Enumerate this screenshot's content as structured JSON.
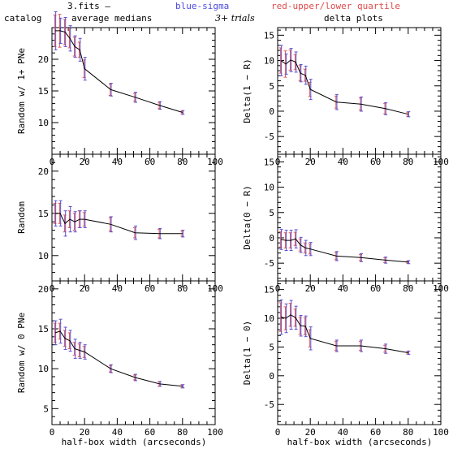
{
  "header": {
    "fits_label": "3.fits  —",
    "blue_label": "blue-sigma",
    "red_label": "red-upper/lower quartile",
    "catalog_label": "catalog",
    "avg_label": "average medians",
    "trials_label": "3+ trials",
    "delta_label": "delta plots"
  },
  "colors": {
    "line": "#000000",
    "sigma": "#5a4fcf",
    "quartile": "#e05a5a",
    "text_blue": "#4a4ae0",
    "text_red": "#e04a4a"
  },
  "xlabel": "half-box width (arcseconds)",
  "chart_data": [
    {
      "type": "line",
      "panel": "catalog-1plus",
      "ylabel": "Random w/ 1+ PNe",
      "xlim": [
        0,
        100
      ],
      "ylim": [
        5,
        25
      ],
      "xticks": [
        0,
        20,
        40,
        60,
        80,
        100
      ],
      "yticks": [
        10,
        15,
        20
      ],
      "x": [
        2,
        5,
        8,
        11,
        14,
        17,
        20,
        36,
        51,
        66,
        80
      ],
      "y": [
        24.5,
        24.5,
        24.3,
        23.3,
        22.0,
        21.5,
        18.5,
        15.2,
        14.0,
        12.7,
        11.6
      ],
      "sigma": [
        3.0,
        2.0,
        2.3,
        2.0,
        1.7,
        1.8,
        1.8,
        1.0,
        0.8,
        0.6,
        0.3
      ],
      "quartile": [
        2.5,
        2.6,
        2.0,
        1.5,
        1.5,
        1.2,
        1.4,
        0.9,
        0.6,
        0.5,
        0.2
      ]
    },
    {
      "type": "line",
      "panel": "delta-1-R",
      "ylabel": "Delta(1 − R)",
      "xlim": [
        0,
        100
      ],
      "ylim": [
        -8.5,
        16.5
      ],
      "xticks": [
        0,
        20,
        40,
        60,
        80,
        100
      ],
      "yticks": [
        -5,
        0,
        5,
        10,
        15
      ],
      "x": [
        2,
        5,
        8,
        11,
        14,
        17,
        20,
        36,
        51,
        66,
        80
      ],
      "y": [
        10.0,
        9.3,
        10.1,
        9.7,
        7.5,
        7.1,
        4.3,
        1.8,
        1.4,
        0.5,
        -0.6
      ],
      "sigma": [
        3.0,
        2.0,
        2.3,
        2.0,
        1.7,
        1.8,
        2.0,
        1.5,
        1.4,
        1.2,
        0.5
      ],
      "quartile": [
        2.5,
        2.6,
        2.0,
        1.5,
        1.5,
        1.2,
        1.4,
        1.2,
        1.2,
        1.0,
        0.4
      ]
    },
    {
      "type": "line",
      "panel": "catalog-random",
      "ylabel": "Random",
      "xlim": [
        0,
        100
      ],
      "ylim": [
        7,
        22
      ],
      "xticks": [
        0,
        20,
        40,
        60,
        80,
        100
      ],
      "yticks": [
        10,
        15,
        20
      ],
      "x": [
        2,
        5,
        8,
        11,
        14,
        17,
        20,
        36,
        51,
        66,
        80
      ],
      "y": [
        15.0,
        15.0,
        13.8,
        14.3,
        14.0,
        14.3,
        14.3,
        13.7,
        12.7,
        12.6,
        12.6
      ],
      "sigma": [
        1.5,
        1.5,
        1.5,
        1.5,
        1.2,
        1.0,
        1.0,
        0.9,
        0.8,
        0.6,
        0.4
      ],
      "quartile": [
        1.2,
        1.2,
        1.0,
        1.0,
        1.0,
        1.0,
        0.8,
        0.8,
        0.6,
        0.5,
        0.3
      ]
    },
    {
      "type": "line",
      "panel": "delta-0-R",
      "ylabel": "Delta(0 − R)",
      "xlim": [
        0,
        100
      ],
      "ylim": [
        -8.5,
        16.5
      ],
      "xticks": [
        0,
        20,
        40,
        60,
        80,
        100
      ],
      "yticks": [
        -5,
        0,
        5,
        10,
        15
      ],
      "x": [
        2,
        5,
        8,
        11,
        14,
        17,
        20,
        36,
        51,
        66,
        80
      ],
      "y": [
        -0.3,
        -0.5,
        -0.5,
        -0.2,
        -1.4,
        -2.0,
        -2.2,
        -3.6,
        -3.9,
        -4.4,
        -4.8
      ],
      "sigma": [
        2.0,
        2.0,
        2.0,
        1.8,
        1.5,
        1.5,
        1.3,
        0.9,
        0.8,
        0.6,
        0.3
      ],
      "quartile": [
        1.5,
        1.5,
        1.5,
        1.3,
        1.2,
        1.0,
        1.0,
        0.7,
        0.6,
        0.5,
        0.2
      ]
    },
    {
      "type": "line",
      "panel": "catalog-0",
      "ylabel": "Random w/ 0 PNe",
      "xlim": [
        0,
        100
      ],
      "ylim": [
        3,
        21
      ],
      "xticks": [
        0,
        20,
        40,
        60,
        80,
        100
      ],
      "yticks": [
        5,
        10,
        15,
        20
      ],
      "x": [
        2,
        5,
        8,
        11,
        14,
        17,
        20,
        36,
        51,
        66,
        80
      ],
      "y": [
        14.5,
        14.7,
        13.8,
        13.5,
        12.5,
        12.3,
        12.1,
        10.0,
        8.9,
        8.1,
        7.8
      ],
      "sigma": [
        1.5,
        1.5,
        1.4,
        1.3,
        1.2,
        1.0,
        0.9,
        0.5,
        0.4,
        0.3,
        0.2
      ],
      "quartile": [
        1.2,
        1.0,
        1.0,
        1.0,
        0.8,
        0.8,
        0.7,
        0.4,
        0.3,
        0.3,
        0.2
      ]
    },
    {
      "type": "line",
      "panel": "delta-1-0",
      "ylabel": "Delta(1 − 0)",
      "xlim": [
        0,
        100
      ],
      "ylim": [
        -8.5,
        16.5
      ],
      "xticks": [
        0,
        20,
        40,
        60,
        80,
        100
      ],
      "yticks": [
        -5,
        0,
        5,
        10,
        15
      ],
      "x": [
        2,
        5,
        8,
        11,
        14,
        17,
        20,
        36,
        51,
        66,
        80
      ],
      "y": [
        10.2,
        10.0,
        10.6,
        10.1,
        8.7,
        8.6,
        6.5,
        5.2,
        5.2,
        4.7,
        4.0
      ],
      "sigma": [
        3.0,
        2.5,
        2.5,
        2.0,
        1.8,
        1.8,
        2.0,
        1.0,
        1.0,
        0.8,
        0.3
      ],
      "quartile": [
        2.5,
        2.0,
        2.0,
        1.5,
        1.5,
        1.5,
        1.5,
        0.8,
        0.8,
        0.6,
        0.2
      ]
    }
  ]
}
